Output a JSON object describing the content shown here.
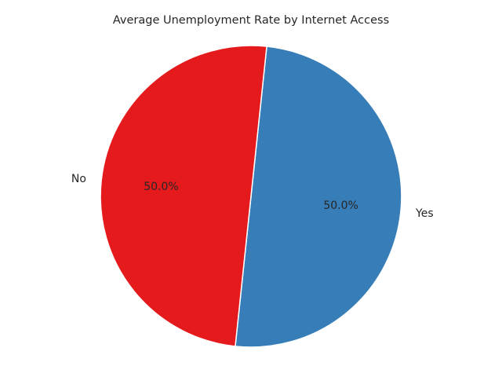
{
  "chart_data": {
    "type": "pie",
    "title": "Average Unemployment Rate by Internet Access",
    "labels": [
      "Yes",
      "No"
    ],
    "values": [
      50.0,
      50.0
    ],
    "percent_labels": [
      "50.0%",
      "50.0%"
    ],
    "colors": [
      "#377eb8",
      "#e41a1c"
    ],
    "start_angle_deg": 84,
    "counterclockwise": false,
    "wedge_edge_color": "#ffffff",
    "legend": "none"
  }
}
